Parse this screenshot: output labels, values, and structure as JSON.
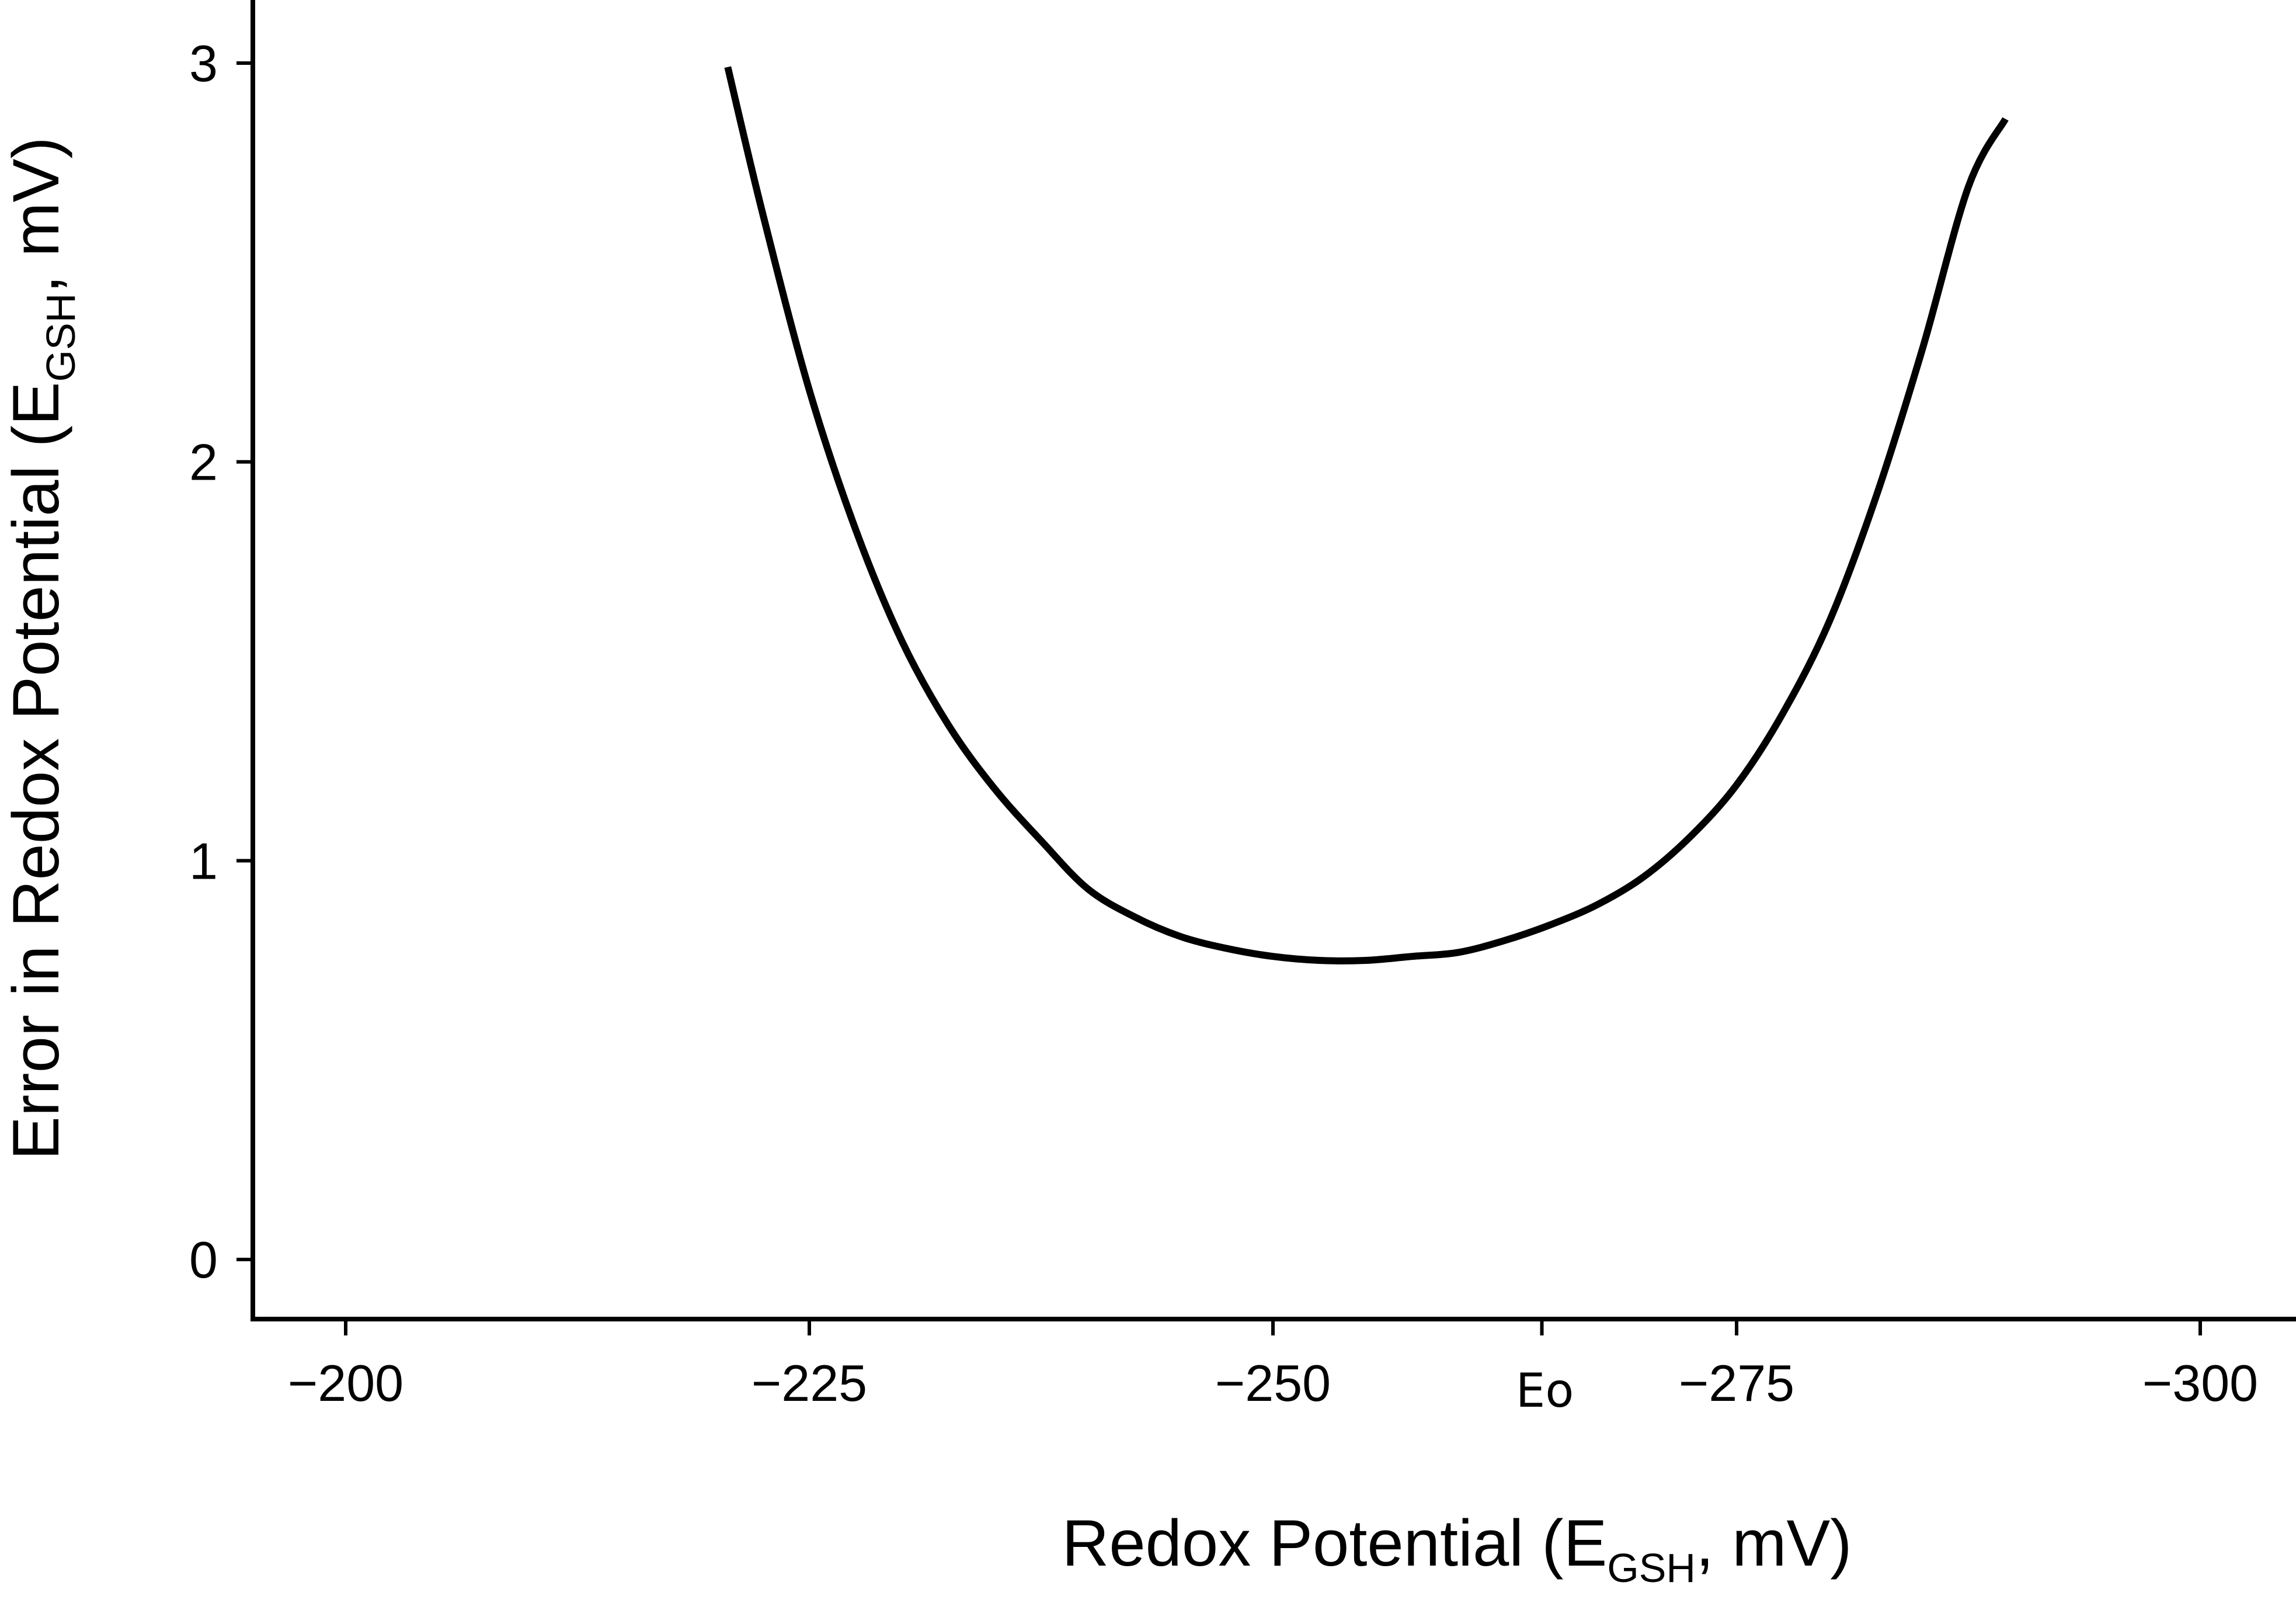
{
  "chart_data": {
    "type": "line",
    "title": "",
    "xlabel": {
      "main": "Redox Potential (E",
      "sub": "GSH",
      "tail": ", mV)"
    },
    "ylabel": {
      "main": "Error in Redox Potential (E",
      "sub": "GSH",
      "tail": ", mV)"
    },
    "xlim": [
      -195,
      -303
    ],
    "ylim": [
      -0.15,
      3.15
    ],
    "x_axis_reversed": true,
    "xticks": [
      -200,
      -225,
      -250,
      -275,
      -300
    ],
    "xtick_labels": [
      "−200",
      "−225",
      "−250",
      "−275",
      "−300"
    ],
    "yticks": [
      0,
      1,
      2,
      3
    ],
    "ytick_labels": [
      "0",
      "1",
      "2",
      "3"
    ],
    "marker": {
      "label": "Eo",
      "x": -264.5
    },
    "grid": false,
    "legend": "none",
    "line_color": "#000000",
    "series": [
      {
        "x": [
          -220.6,
          -222.5,
          -225,
          -227.5,
          -230,
          -232.5,
          -235,
          -237.5,
          -240,
          -242.5,
          -245,
          -247.5,
          -250,
          -252.5,
          -255,
          -257.5,
          -260,
          -262.5,
          -265,
          -267.5,
          -270,
          -272.5,
          -275,
          -277.5,
          -280,
          -282.5,
          -285,
          -287.5,
          -289.5
        ],
        "y": [
          2.99,
          2.62,
          2.18,
          1.83,
          1.55,
          1.34,
          1.18,
          1.05,
          0.93,
          0.86,
          0.81,
          0.78,
          0.76,
          0.75,
          0.75,
          0.76,
          0.77,
          0.8,
          0.84,
          0.89,
          0.96,
          1.06,
          1.19,
          1.37,
          1.6,
          1.91,
          2.28,
          2.69,
          2.86
        ]
      }
    ]
  }
}
